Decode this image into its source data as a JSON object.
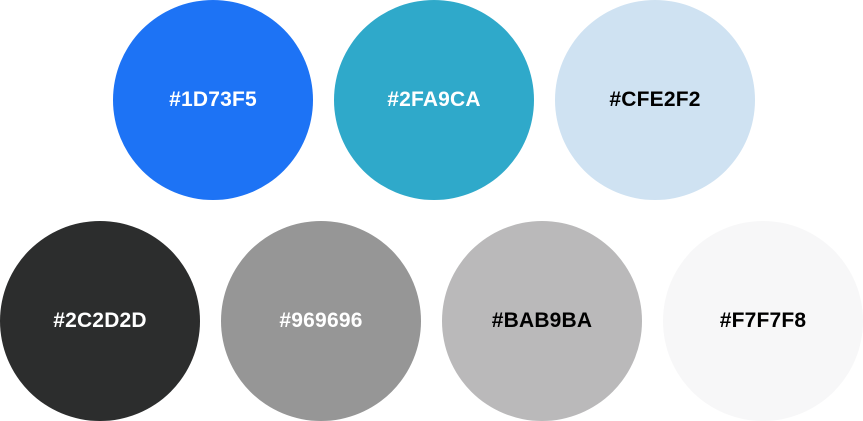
{
  "swatches": [
    {
      "label": "#1D73F5",
      "color": "#1D73F5",
      "text_color": "#FFFFFF"
    },
    {
      "label": "#2FA9CA",
      "color": "#2FA9CA",
      "text_color": "#FFFFFF"
    },
    {
      "label": "#CFE2F2",
      "color": "#CFE2F2",
      "text_color": "#000000"
    },
    {
      "label": "#2C2D2D",
      "color": "#2C2D2D",
      "text_color": "#FFFFFF"
    },
    {
      "label": "#969696",
      "color": "#969696",
      "text_color": "#FFFFFF"
    },
    {
      "label": "#BAB9BA",
      "color": "#BAB9BA",
      "text_color": "#000000"
    },
    {
      "label": "#F7F7F8",
      "color": "#F7F7F8",
      "text_color": "#000000"
    }
  ]
}
